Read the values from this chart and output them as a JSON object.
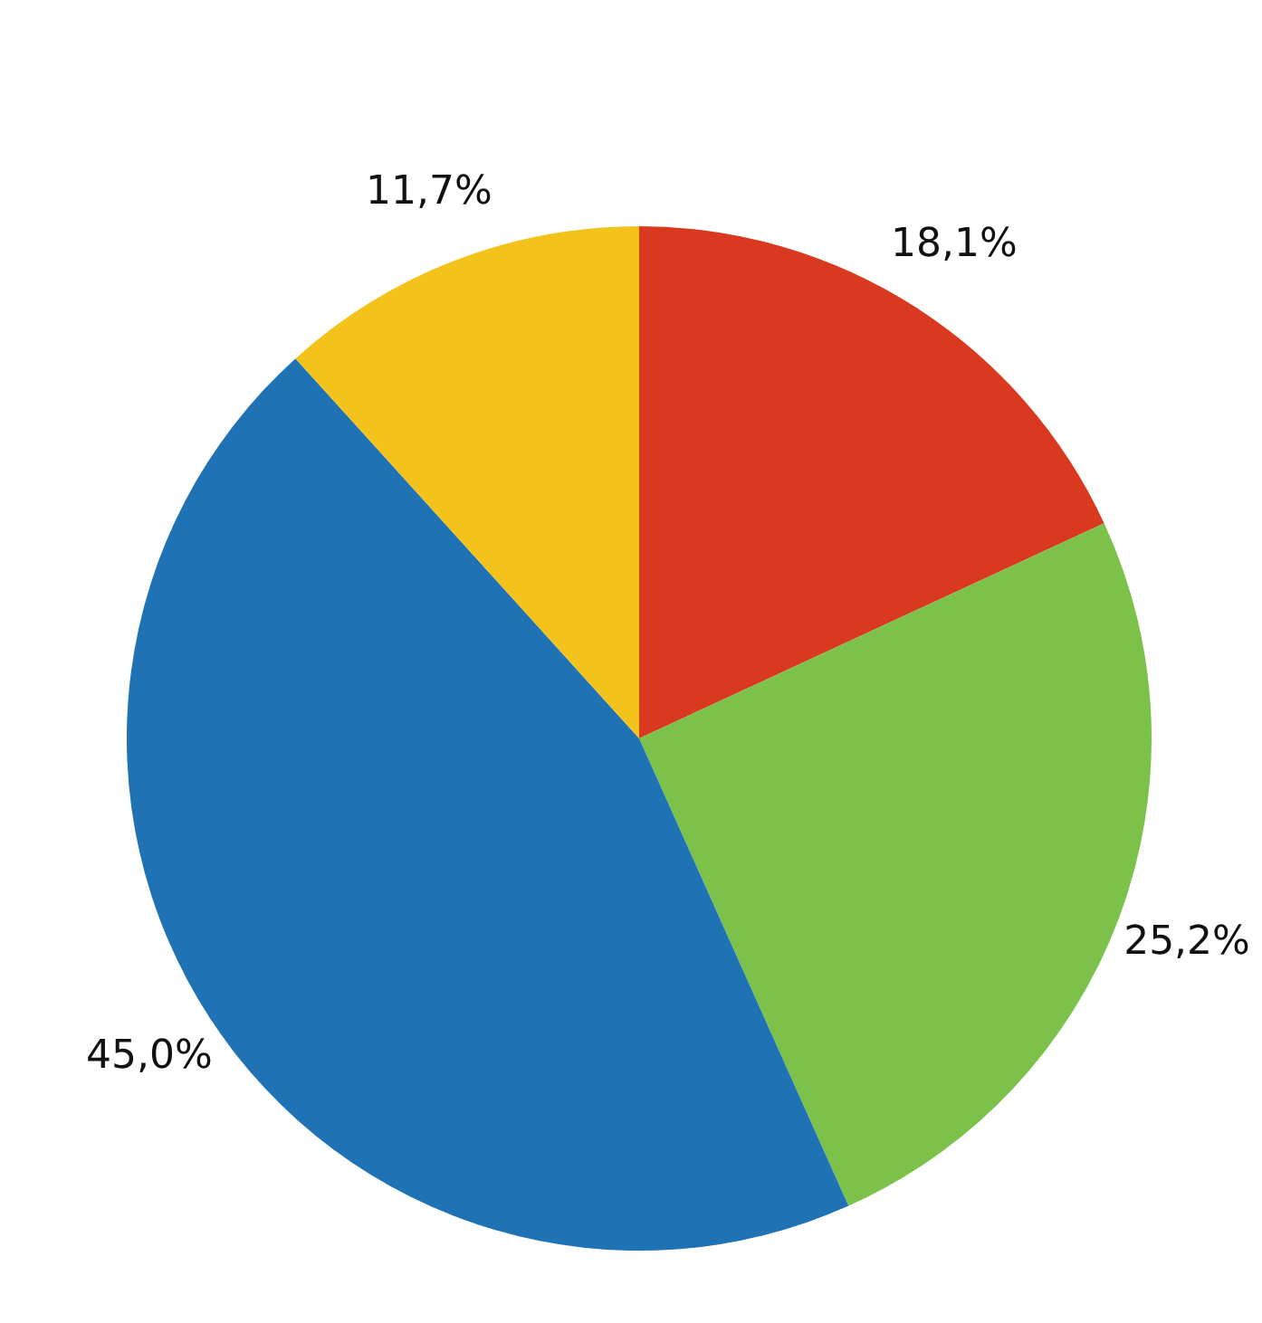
{
  "chart_data": {
    "type": "pie",
    "categories": [
      null,
      null,
      null,
      null
    ],
    "values": [
      18.1,
      25.2,
      45.0,
      11.7
    ],
    "colors": [
      "#d9391f",
      "#7cc24a",
      "#1f72b4",
      "#f3c21b"
    ],
    "value_labels": [
      "18,1%",
      "25,2%",
      "45,0%",
      "11,7%"
    ]
  }
}
